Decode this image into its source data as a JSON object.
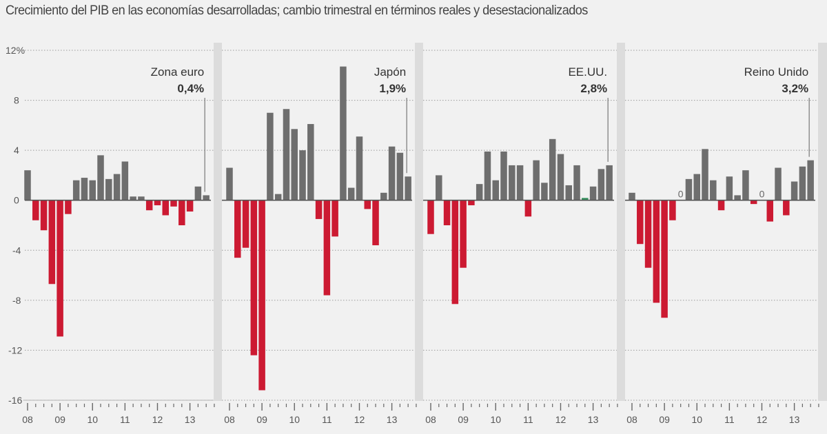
{
  "title": "Crecimiento del PIB en las economías desarrolladas; cambio trimestral en términos reales y desestacionalizados",
  "colors": {
    "positive": "#6e6e6e",
    "negative": "#cc1a32",
    "near_zero_highlight": "#2e8b57",
    "background": "#f1f1f1",
    "separator": "#dcdcdc",
    "text": "#444444"
  },
  "chart_data": {
    "type": "bar",
    "title": "Crecimiento del PIB en las economías desarrolladas; cambio trimestral en términos reales y desestacionalizados",
    "xlabel": "",
    "ylabel": "%",
    "ylim": [
      -16,
      12
    ],
    "yticks": [
      12,
      8,
      4,
      0,
      -4,
      -8,
      -12,
      -16
    ],
    "ytick_labels": [
      "12%",
      "8",
      "4",
      "0",
      "-4",
      "-8",
      "-12",
      "-16"
    ],
    "grid": true,
    "x_year_labels": [
      "08",
      "09",
      "10",
      "11",
      "12",
      "13"
    ],
    "quarters": [
      "2008T1",
      "2008T2",
      "2008T3",
      "2008T4",
      "2009T1",
      "2009T2",
      "2009T3",
      "2009T4",
      "2010T1",
      "2010T2",
      "2010T3",
      "2010T4",
      "2011T1",
      "2011T2",
      "2011T3",
      "2011T4",
      "2012T1",
      "2012T2",
      "2012T3",
      "2012T4",
      "2013T1",
      "2013T2",
      "2013T3"
    ],
    "series": [
      {
        "name": "Zona euro",
        "latest_label": "0,4%",
        "values": [
          2.4,
          -1.6,
          -2.4,
          -6.7,
          -10.9,
          -1.1,
          1.6,
          1.8,
          1.6,
          3.6,
          1.7,
          2.1,
          3.1,
          0.3,
          0.3,
          -0.8,
          -0.4,
          -1.2,
          -0.5,
          -2.0,
          -0.9,
          1.1,
          0.4
        ],
        "zero_markers": []
      },
      {
        "name": "Japón",
        "latest_label": "1,9%",
        "values": [
          2.6,
          -4.6,
          -3.8,
          -12.4,
          -15.2,
          7.0,
          0.5,
          7.3,
          5.7,
          4.0,
          6.1,
          -1.5,
          -7.6,
          -2.9,
          10.7,
          1.0,
          5.1,
          -0.7,
          -3.6,
          0.6,
          4.3,
          3.8,
          1.9
        ],
        "zero_markers": []
      },
      {
        "name": "EE.UU.",
        "latest_label": "2,8%",
        "values": [
          -2.7,
          2.0,
          -2.0,
          -8.3,
          -5.4,
          -0.4,
          1.3,
          3.9,
          1.6,
          3.9,
          2.8,
          2.8,
          -1.3,
          3.2,
          1.4,
          4.9,
          3.7,
          1.2,
          2.8,
          0.1,
          1.1,
          2.5,
          2.8
        ],
        "highlight_index": 19,
        "zero_markers": []
      },
      {
        "name": "Reino Unido",
        "latest_label": "3,2%",
        "values": [
          0.6,
          -3.5,
          -5.4,
          -8.2,
          -9.4,
          -1.6,
          0,
          1.7,
          2.1,
          4.1,
          1.6,
          -0.8,
          1.9,
          0.4,
          2.4,
          -0.3,
          0,
          -1.7,
          2.6,
          -1.2,
          1.5,
          2.7,
          3.2
        ],
        "zero_markers": [
          6,
          16
        ],
        "zero_marker_label": "0"
      }
    ]
  }
}
